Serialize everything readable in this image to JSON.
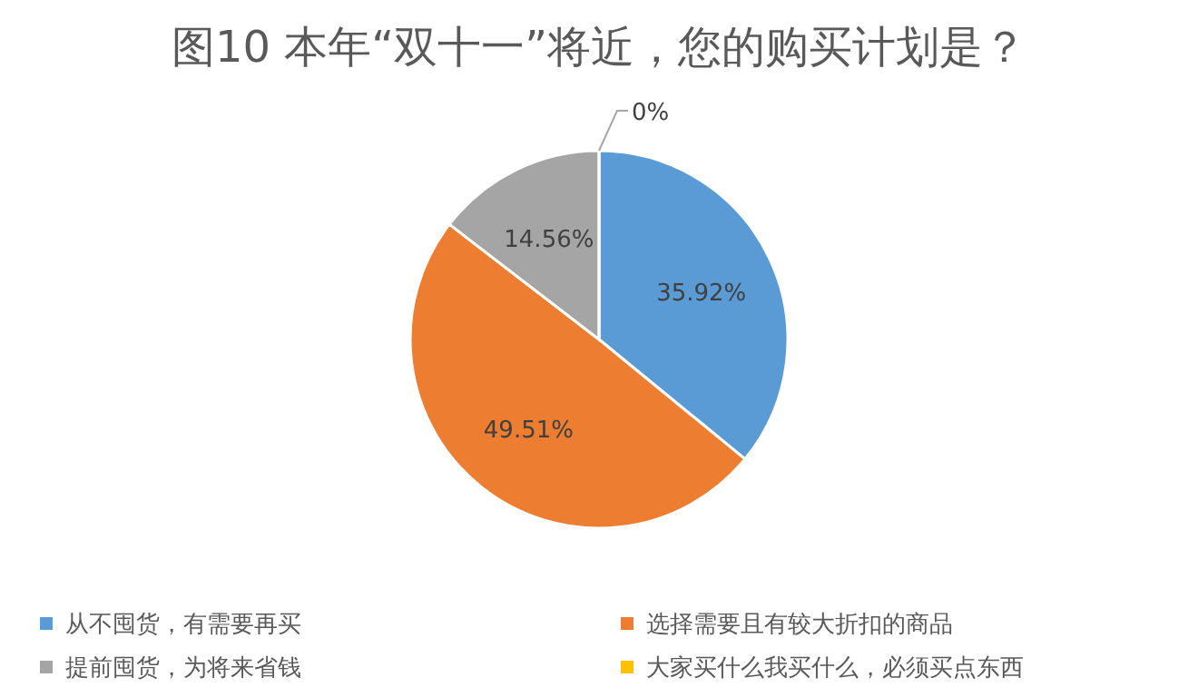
{
  "chart_data": {
    "type": "pie",
    "title": "图10  本年“双十一”将近，您的购买计划是？",
    "categories": [
      "从不囤货，有需要再买",
      "选择需要且有较大折扣的商品",
      "提前囤货，为将来省钱",
      "大家买什么我买什么，必须买点东西"
    ],
    "values": [
      35.92,
      49.51,
      14.56,
      0
    ],
    "colors": [
      "#5b9bd5",
      "#ed7d31",
      "#a5a5a5",
      "#ffc000"
    ],
    "value_labels": [
      "35.92%",
      "49.51%",
      "14.56%",
      "0%"
    ],
    "legend": "bottom"
  }
}
